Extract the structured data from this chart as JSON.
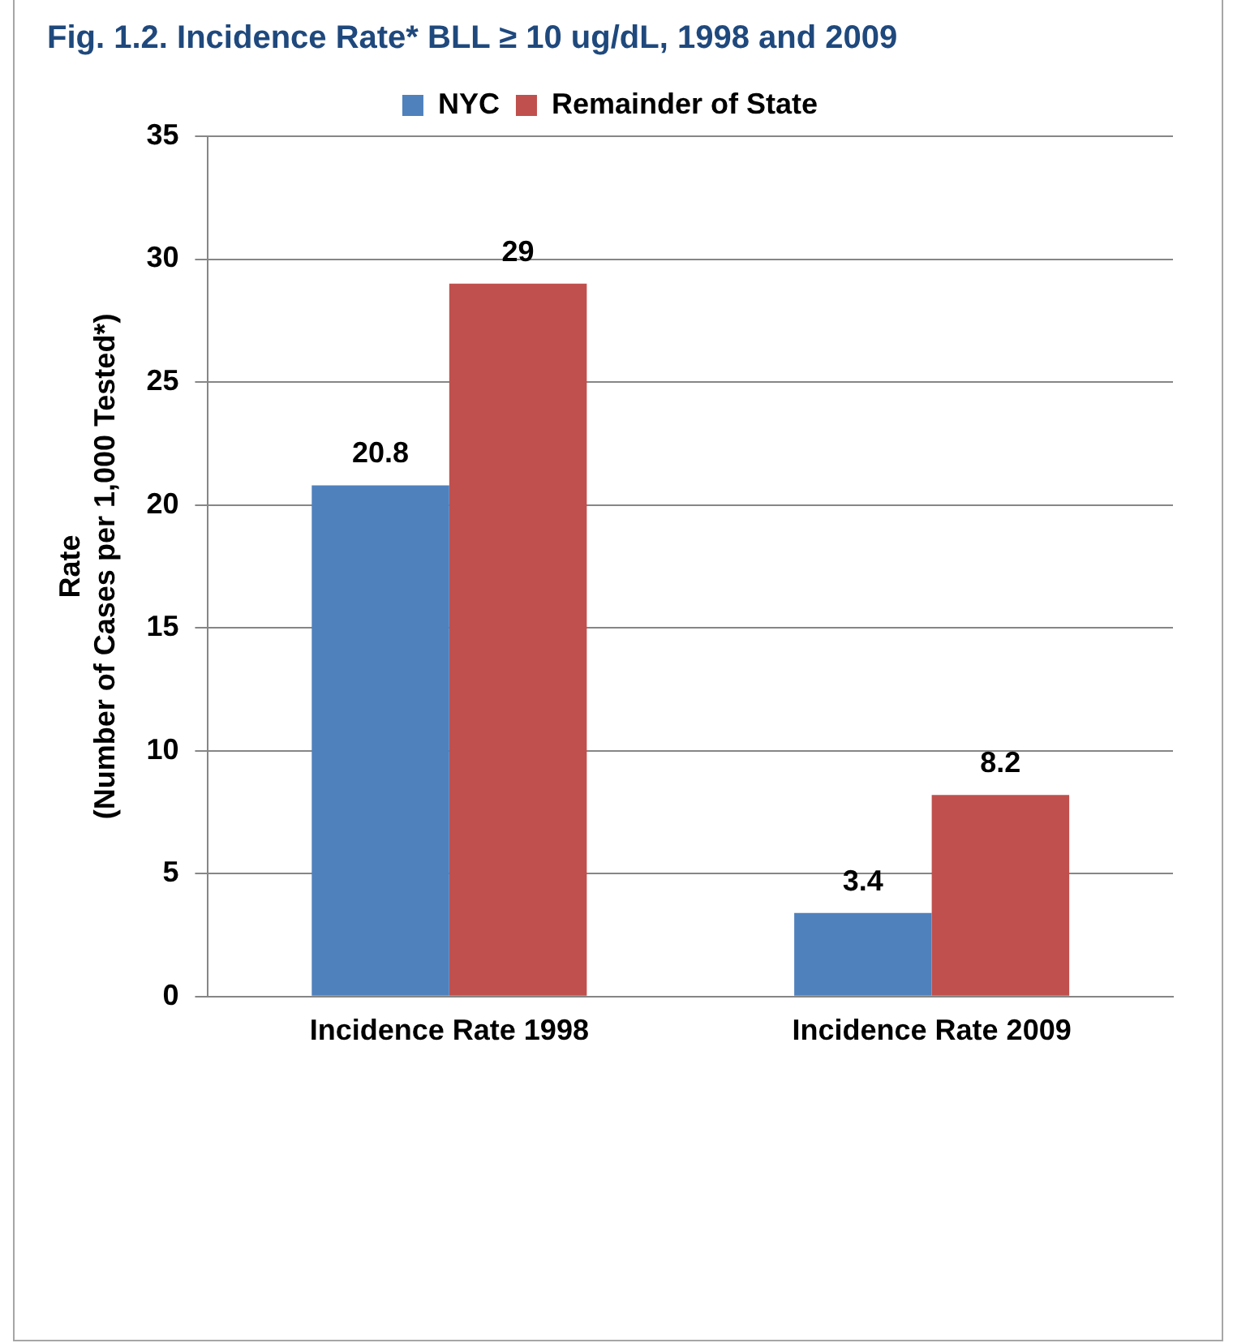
{
  "chart_data": {
    "type": "bar",
    "title": "Fig. 1.2. Incidence Rate* BLL ≥ 10 ug/dL, 1998 and 2009",
    "ylabel": "Rate (Number of Cases per 1,000 Tested*)",
    "categories": [
      "Incidence Rate 1998",
      "Incidence Rate 2009"
    ],
    "series": [
      {
        "name": "NYC",
        "color": "#4f81bd",
        "values": [
          20.8,
          3.4
        ]
      },
      {
        "name": "Remainder of State",
        "color": "#c0504d",
        "values": [
          29,
          8.2
        ]
      }
    ],
    "ylim": [
      0,
      35
    ],
    "yticks": [
      0,
      5,
      10,
      15,
      20,
      25,
      30,
      35
    ],
    "grid": "y",
    "legend": "top",
    "data_labels": true
  }
}
